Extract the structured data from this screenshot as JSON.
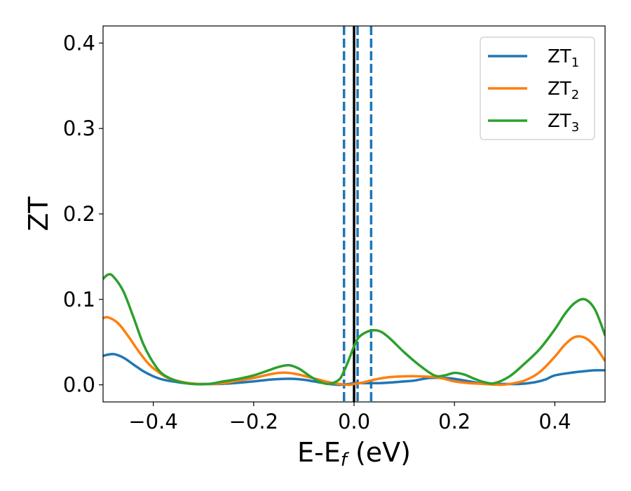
{
  "chart_data": {
    "type": "line",
    "xlabel": "E-E",
    "xlabel_sub": "f",
    "xlabel_unit": " (eV)",
    "ylabel": "ZT",
    "xlim": [
      -0.5,
      0.5
    ],
    "ylim": [
      -0.02,
      0.42
    ],
    "xticks": [
      -0.4,
      -0.2,
      0.0,
      0.2,
      0.4
    ],
    "xtick_labels": [
      "−0.4",
      "−0.2",
      "0.0",
      "0.2",
      "0.4"
    ],
    "yticks": [
      0.0,
      0.1,
      0.2,
      0.3,
      0.4
    ],
    "ytick_labels": [
      "0.0",
      "0.1",
      "0.2",
      "0.3",
      "0.4"
    ],
    "grid": false,
    "legend_position": "top-right",
    "vertical_lines": [
      {
        "x": 0.0,
        "style": "solid",
        "color": "#000000"
      },
      {
        "x": -0.02,
        "style": "dashed",
        "color": "#1f77b4"
      },
      {
        "x": 0.007,
        "style": "dashed",
        "color": "#1f77b4"
      },
      {
        "x": 0.034,
        "style": "dashed",
        "color": "#1f77b4"
      }
    ],
    "series": [
      {
        "name": "ZT",
        "name_sub": "1",
        "color": "#1f77b4",
        "x": [
          -0.5,
          -0.48,
          -0.46,
          -0.44,
          -0.42,
          -0.4,
          -0.38,
          -0.35,
          -0.32,
          -0.3,
          -0.27,
          -0.24,
          -0.2,
          -0.17,
          -0.14,
          -0.12,
          -0.1,
          -0.08,
          -0.05,
          -0.03,
          -0.01,
          0.0,
          0.02,
          0.05,
          0.08,
          0.1,
          0.12,
          0.15,
          0.18,
          0.2,
          0.23,
          0.26,
          0.28,
          0.3,
          0.33,
          0.36,
          0.38,
          0.4,
          0.43,
          0.46,
          0.48,
          0.5
        ],
        "y": [
          0.034,
          0.036,
          0.032,
          0.024,
          0.016,
          0.01,
          0.006,
          0.003,
          0.001,
          0.001,
          0.001,
          0.002,
          0.004,
          0.006,
          0.007,
          0.007,
          0.006,
          0.004,
          0.001,
          0.0,
          0.001,
          0.002,
          0.002,
          0.002,
          0.003,
          0.004,
          0.005,
          0.008,
          0.008,
          0.007,
          0.004,
          0.001,
          0.001,
          0.001,
          0.001,
          0.003,
          0.006,
          0.011,
          0.014,
          0.016,
          0.017,
          0.017
        ]
      },
      {
        "name": "ZT",
        "name_sub": "2",
        "color": "#ff7f0e",
        "x": [
          -0.5,
          -0.49,
          -0.47,
          -0.45,
          -0.43,
          -0.41,
          -0.39,
          -0.37,
          -0.34,
          -0.31,
          -0.29,
          -0.26,
          -0.23,
          -0.2,
          -0.17,
          -0.15,
          -0.13,
          -0.11,
          -0.09,
          -0.07,
          -0.05,
          -0.03,
          -0.01,
          0.0,
          0.02,
          0.04,
          0.07,
          0.1,
          0.13,
          0.16,
          0.18,
          0.2,
          0.23,
          0.26,
          0.29,
          0.31,
          0.34,
          0.37,
          0.4,
          0.42,
          0.44,
          0.46,
          0.48,
          0.5
        ],
        "y": [
          0.078,
          0.079,
          0.072,
          0.057,
          0.04,
          0.025,
          0.015,
          0.008,
          0.003,
          0.001,
          0.001,
          0.002,
          0.005,
          0.008,
          0.012,
          0.014,
          0.014,
          0.012,
          0.009,
          0.006,
          0.003,
          0.001,
          0.0,
          0.001,
          0.003,
          0.006,
          0.009,
          0.01,
          0.01,
          0.009,
          0.007,
          0.004,
          0.002,
          0.001,
          0.0,
          0.001,
          0.005,
          0.015,
          0.033,
          0.047,
          0.056,
          0.055,
          0.045,
          0.028
        ]
      },
      {
        "name": "ZT",
        "name_sub": "3",
        "color": "#2ca02c",
        "x": [
          -0.5,
          -0.49,
          -0.48,
          -0.46,
          -0.44,
          -0.42,
          -0.4,
          -0.38,
          -0.35,
          -0.32,
          -0.29,
          -0.26,
          -0.23,
          -0.2,
          -0.17,
          -0.15,
          -0.13,
          -0.11,
          -0.09,
          -0.07,
          -0.05,
          -0.03,
          -0.02,
          -0.01,
          0.0,
          0.01,
          0.03,
          0.05,
          0.07,
          0.1,
          0.13,
          0.16,
          0.18,
          0.2,
          0.22,
          0.24,
          0.26,
          0.28,
          0.31,
          0.34,
          0.37,
          0.4,
          0.42,
          0.44,
          0.46,
          0.48,
          0.5
        ],
        "y": [
          0.124,
          0.129,
          0.127,
          0.11,
          0.08,
          0.048,
          0.026,
          0.012,
          0.004,
          0.001,
          0.001,
          0.004,
          0.007,
          0.011,
          0.017,
          0.021,
          0.023,
          0.019,
          0.011,
          0.004,
          0.001,
          0.006,
          0.016,
          0.03,
          0.045,
          0.056,
          0.063,
          0.063,
          0.055,
          0.038,
          0.023,
          0.011,
          0.011,
          0.014,
          0.012,
          0.007,
          0.003,
          0.002,
          0.01,
          0.025,
          0.042,
          0.065,
          0.083,
          0.096,
          0.1,
          0.088,
          0.058
        ]
      }
    ]
  }
}
